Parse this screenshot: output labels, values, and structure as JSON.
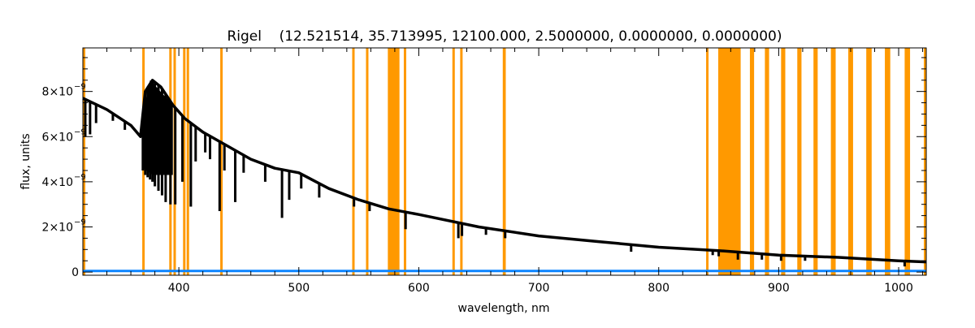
{
  "chart_data": {
    "type": "line",
    "title": "Rigel    (12.521514, 35.713995, 12100.000, 2.5000000, 0.0000000, 0.0000000)",
    "xlabel": "wavelength, nm",
    "ylabel": "flux, units",
    "xlim": [
      320,
      1023
    ],
    "ylim": [
      -1.4e-10,
      9.93e-09
    ],
    "x_major_ticks": [
      400,
      500,
      600,
      700,
      800,
      900,
      1000
    ],
    "x_tick_labels": [
      "400",
      "500",
      "600",
      "700",
      "800",
      "900",
      "1000"
    ],
    "x_minor_step": 20,
    "y_major_ticks": [
      0,
      2e-09,
      4e-09,
      6e-09,
      8e-09
    ],
    "y_tick_labels": [
      {
        "mant": "0",
        "exp": ""
      },
      {
        "mant": "2×10",
        "exp": "−9"
      },
      {
        "mant": "4×10",
        "exp": "−9"
      },
      {
        "mant": "6×10",
        "exp": "−9"
      },
      {
        "mant": "8×10",
        "exp": "−9"
      }
    ],
    "y_minor_step": 5e-10,
    "grid": false,
    "colors": {
      "spectrum": "#000000",
      "error": "#0a84ff",
      "mask": "#ff9900"
    },
    "series": [
      {
        "name": "flux",
        "x": [
          320,
          340,
          360,
          368,
          372,
          378,
          385,
          395,
          405,
          420,
          440,
          460,
          480,
          500,
          525,
          550,
          575,
          600,
          650,
          700,
          750,
          800,
          850,
          900,
          950,
          1000,
          1023
        ],
        "y": [
          7.7e-09,
          7.2e-09,
          6.5e-09,
          6e-09,
          8e-09,
          8.5e-09,
          8.2e-09,
          7.4e-09,
          6.8e-09,
          6.2e-09,
          5.6e-09,
          5e-09,
          4.6e-09,
          4.4e-09,
          3.7e-09,
          3.2e-09,
          2.8e-09,
          2.55e-09,
          2e-09,
          1.6e-09,
          1.35e-09,
          1.1e-09,
          9.5e-10,
          7.5e-10,
          6.5e-10,
          5e-10,
          4.5e-10
        ]
      },
      {
        "name": "flux error",
        "x": [
          320,
          1023
        ],
        "y": [
          5e-11,
          5e-11
        ]
      }
    ],
    "absorption_lines": [
      {
        "x": 322,
        "y": 6e-09
      },
      {
        "x": 326,
        "y": 6.1e-09
      },
      {
        "x": 331,
        "y": 6.6e-09
      },
      {
        "x": 345,
        "y": 6.7e-09
      },
      {
        "x": 355,
        "y": 6.3e-09
      },
      {
        "x": 370,
        "y": 4.5e-09
      },
      {
        "x": 372,
        "y": 4.3e-09
      },
      {
        "x": 374,
        "y": 4.2e-09
      },
      {
        "x": 376,
        "y": 4.1e-09
      },
      {
        "x": 378,
        "y": 4e-09
      },
      {
        "x": 380,
        "y": 3.8e-09
      },
      {
        "x": 383,
        "y": 3.6e-09
      },
      {
        "x": 386,
        "y": 3.4e-09
      },
      {
        "x": 389,
        "y": 3.1e-09
      },
      {
        "x": 393,
        "y": 3e-09
      },
      {
        "x": 397,
        "y": 3e-09
      },
      {
        "x": 403,
        "y": 4e-09
      },
      {
        "x": 410,
        "y": 2.9e-09
      },
      {
        "x": 414,
        "y": 4.9e-09
      },
      {
        "x": 422,
        "y": 5.3e-09
      },
      {
        "x": 426,
        "y": 5e-09
      },
      {
        "x": 434,
        "y": 2.7e-09
      },
      {
        "x": 438,
        "y": 4.5e-09
      },
      {
        "x": 447,
        "y": 3.1e-09
      },
      {
        "x": 454,
        "y": 4.4e-09
      },
      {
        "x": 472,
        "y": 4e-09
      },
      {
        "x": 486,
        "y": 2.4e-09
      },
      {
        "x": 492,
        "y": 3.2e-09
      },
      {
        "x": 502,
        "y": 3.7e-09
      },
      {
        "x": 517,
        "y": 3.3e-09
      },
      {
        "x": 546,
        "y": 2.9e-09
      },
      {
        "x": 559,
        "y": 2.7e-09
      },
      {
        "x": 589,
        "y": 1.9e-09
      },
      {
        "x": 633,
        "y": 1.5e-09
      },
      {
        "x": 636,
        "y": 1.6e-09
      },
      {
        "x": 656,
        "y": 1.65e-09
      },
      {
        "x": 672,
        "y": 1.5e-09
      },
      {
        "x": 777,
        "y": 9e-10
      },
      {
        "x": 845,
        "y": 7.5e-10
      },
      {
        "x": 850,
        "y": 7e-10
      },
      {
        "x": 866,
        "y": 5.5e-10
      },
      {
        "x": 886,
        "y": 5.5e-10
      },
      {
        "x": 902,
        "y": 5e-10
      },
      {
        "x": 922,
        "y": 5e-10
      },
      {
        "x": 1005,
        "y": 2.5e-10
      }
    ],
    "masked_regions": [
      [
        319.5,
        321
      ],
      [
        369.5,
        371.5
      ],
      [
        392,
        394
      ],
      [
        395.5,
        397.5
      ],
      [
        403.5,
        405.5
      ],
      [
        406.5,
        408.5
      ],
      [
        434.5,
        436.5
      ],
      [
        544.5,
        546.5
      ],
      [
        556,
        558
      ],
      [
        574.2,
        583.9
      ],
      [
        587.5,
        589.5
      ],
      [
        628,
        630
      ],
      [
        634.5,
        636.5
      ],
      [
        670,
        672.5
      ],
      [
        839.5,
        841.5
      ],
      [
        849.6,
        868.3
      ],
      [
        876,
        879.5
      ],
      [
        888.5,
        892
      ],
      [
        902,
        905.5
      ],
      [
        915.5,
        919
      ],
      [
        929,
        932.5
      ],
      [
        943.5,
        947.5
      ],
      [
        958,
        962
      ],
      [
        973,
        977.5
      ],
      [
        988.5,
        993
      ],
      [
        1005,
        1009.5
      ],
      [
        1021,
        1023
      ]
    ]
  }
}
